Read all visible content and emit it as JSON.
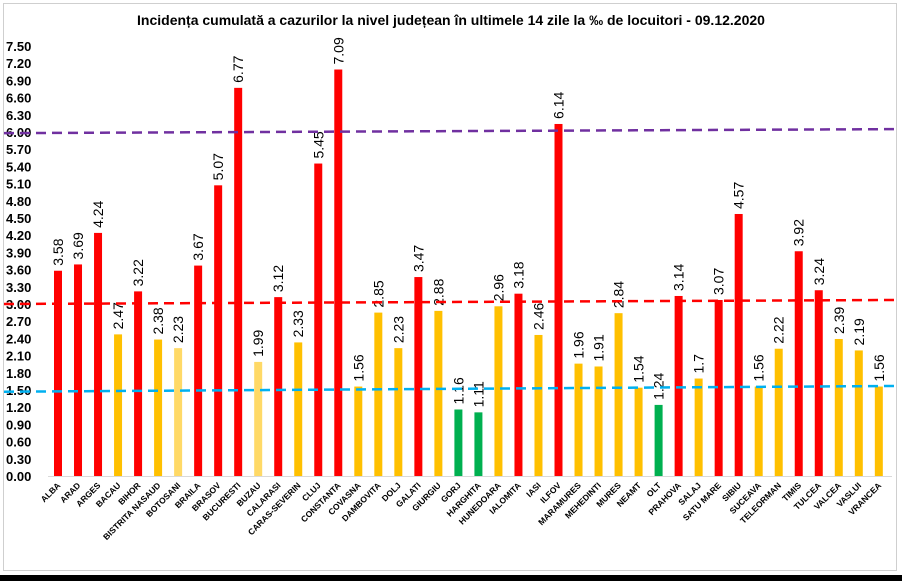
{
  "chart_data": {
    "type": "bar",
    "title": "Incidența cumulată a cazurilor la nivel județean în ultimele 14 zile la ‰ de locuitori - 09.12.2020",
    "xlabel": "",
    "ylabel": "",
    "ylim": [
      0,
      7.5
    ],
    "ytick_step": 0.3,
    "ytick_labels": [
      "0.00",
      "0.30",
      "0.60",
      "0.90",
      "1.20",
      "1.50",
      "1.80",
      "2.10",
      "2.40",
      "2.70",
      "3.00",
      "3.30",
      "3.60",
      "3.90",
      "4.20",
      "4.50",
      "4.80",
      "5.10",
      "5.40",
      "5.70",
      "6.00",
      "6.30",
      "6.60",
      "6.90",
      "7.20",
      "7.50"
    ],
    "grid": false,
    "categories": [
      "ALBA",
      "ARAD",
      "ARGES",
      "BACAU",
      "BIHOR",
      "BISTRITA NASAUD",
      "BOTOSANI",
      "BRAILA",
      "BRASOV",
      "BUCURESTI",
      "BUZAU",
      "CALARASI",
      "CARAS-SEVERIN",
      "CLUJ",
      "CONSTANTA",
      "COVASNA",
      "DAMBOVITA",
      "DOLJ",
      "GALATI",
      "GIURGIU",
      "GORJ",
      "HARGHITA",
      "HUNEDOARA",
      "IALOMITA",
      "IASI",
      "ILFOV",
      "MARAMURES",
      "MEHEDINTI",
      "MURES",
      "NEAMT",
      "OLT",
      "PRAHOVA",
      "SALAJ",
      "SATU MARE",
      "SIBIU",
      "SUCEAVA",
      "TELEORMAN",
      "TIMIS",
      "TULCEA",
      "VALCEA",
      "VASLUI",
      "VRANCEA"
    ],
    "values": [
      3.58,
      3.69,
      4.24,
      2.47,
      3.22,
      2.38,
      2.23,
      3.67,
      5.07,
      6.77,
      1.99,
      3.12,
      2.33,
      5.45,
      7.09,
      1.56,
      2.85,
      2.23,
      3.47,
      2.88,
      1.16,
      1.11,
      2.96,
      3.18,
      2.46,
      6.14,
      1.96,
      1.91,
      2.84,
      1.54,
      1.24,
      3.14,
      1.7,
      3.07,
      4.57,
      1.56,
      2.22,
      3.92,
      3.24,
      2.39,
      2.19,
      1.56
    ],
    "data_labels": [
      "3.58",
      "3.69",
      "4.24",
      "2.47",
      "3.22",
      "2.38",
      "2.23",
      "3.67",
      "5.07",
      "6.77",
      "1.99",
      "3.12",
      "2.33",
      "5.45",
      "7.09",
      "1.56",
      "2.85",
      "2.23",
      "3.47",
      "2.88",
      "1.16",
      "1.11",
      "2.96",
      "3.18",
      "2.46",
      "6.14",
      "1.96",
      "1.91",
      "2.84",
      "1.54",
      "1.24",
      "3.14",
      "1.7",
      "3.07",
      "4.57",
      "1.56",
      "2.22",
      "3.92",
      "3.24",
      "2.39",
      "2.19",
      "1.56"
    ],
    "bar_colors": [
      "#ff0000",
      "#ff0000",
      "#ff0000",
      "#ffc000",
      "#ff0000",
      "#ffc000",
      "#ffd966",
      "#ff0000",
      "#ff0000",
      "#ff0000",
      "#ffd966",
      "#ff0000",
      "#ffc000",
      "#ff0000",
      "#ff0000",
      "#ffc000",
      "#ffc000",
      "#ffc000",
      "#ff0000",
      "#ffc000",
      "#00b050",
      "#00b050",
      "#ffc000",
      "#ff0000",
      "#ffc000",
      "#ff0000",
      "#ffc000",
      "#ffc000",
      "#ffc000",
      "#ffc000",
      "#00b050",
      "#ff0000",
      "#ffc000",
      "#ff0000",
      "#ff0000",
      "#ffc000",
      "#ffc000",
      "#ff0000",
      "#ff0000",
      "#ffc000",
      "#ffc000",
      "#ffc000"
    ],
    "reference_lines": [
      {
        "from": 5.98,
        "to": 6.05,
        "color": "#7030a0",
        "style": "dashed"
      },
      {
        "from": 3.0,
        "to": 3.07,
        "color": "#ff0000",
        "style": "dashed"
      },
      {
        "from": 1.47,
        "to": 1.57,
        "color": "#00b0f0",
        "style": "dashed"
      }
    ]
  }
}
